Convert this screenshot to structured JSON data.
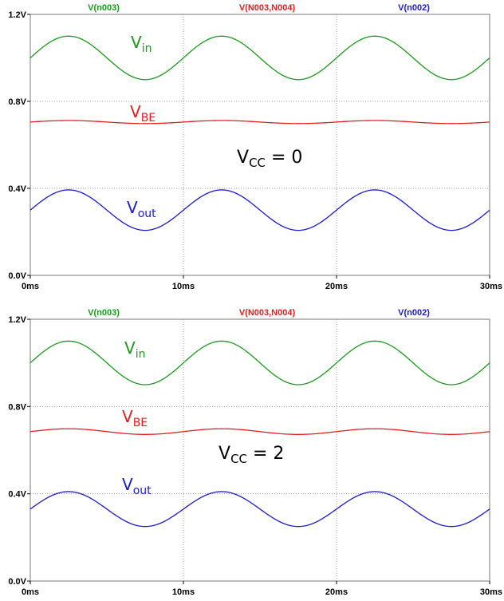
{
  "chart_data": [
    {
      "type": "line",
      "annotation": {
        "main": "V",
        "sub": "CC",
        "rest": " = 0"
      },
      "xlim": [
        0,
        30
      ],
      "ylim": [
        0,
        1.2
      ],
      "x_ticks": [
        "0ms",
        "10ms",
        "20ms",
        "30ms"
      ],
      "y_ticks": [
        "0.0V",
        "0.4V",
        "0.8V",
        "1.2V"
      ],
      "grid": true,
      "series": [
        {
          "name": "V(n003)",
          "label_main": "V",
          "label_sub": "in",
          "color": "#1a9a1a",
          "offset": 1.0,
          "amplitude": 0.1,
          "period": 10
        },
        {
          "name": "V(N003,N004)",
          "label_main": "V",
          "label_sub": "BE",
          "color": "#e02020",
          "offset": 0.705,
          "amplitude": 0.007,
          "period": 10
        },
        {
          "name": "V(n002)",
          "label_main": "V",
          "label_sub": "out",
          "color": "#1a1ad0",
          "offset": 0.3,
          "amplitude": 0.093,
          "period": 10
        }
      ]
    },
    {
      "type": "line",
      "annotation": {
        "main": "V",
        "sub": "CC",
        "rest": " = 2"
      },
      "xlim": [
        0,
        30
      ],
      "ylim": [
        0,
        1.2
      ],
      "x_ticks": [
        "0ms",
        "10ms",
        "20ms",
        "30ms"
      ],
      "y_ticks": [
        "0.0V",
        "0.4V",
        "0.8V",
        "1.2V"
      ],
      "grid": true,
      "series": [
        {
          "name": "V(n003)",
          "label_main": "V",
          "label_sub": "in",
          "color": "#1a9a1a",
          "offset": 1.0,
          "amplitude": 0.1,
          "period": 10
        },
        {
          "name": "V(N003,N004)",
          "label_main": "V",
          "label_sub": "BE",
          "color": "#e02020",
          "offset": 0.685,
          "amplitude": 0.013,
          "period": 10
        },
        {
          "name": "V(n002)",
          "label_main": "V",
          "label_sub": "out",
          "color": "#1a1ad0",
          "offset": 0.33,
          "amplitude": 0.08,
          "period": 10
        }
      ]
    }
  ]
}
